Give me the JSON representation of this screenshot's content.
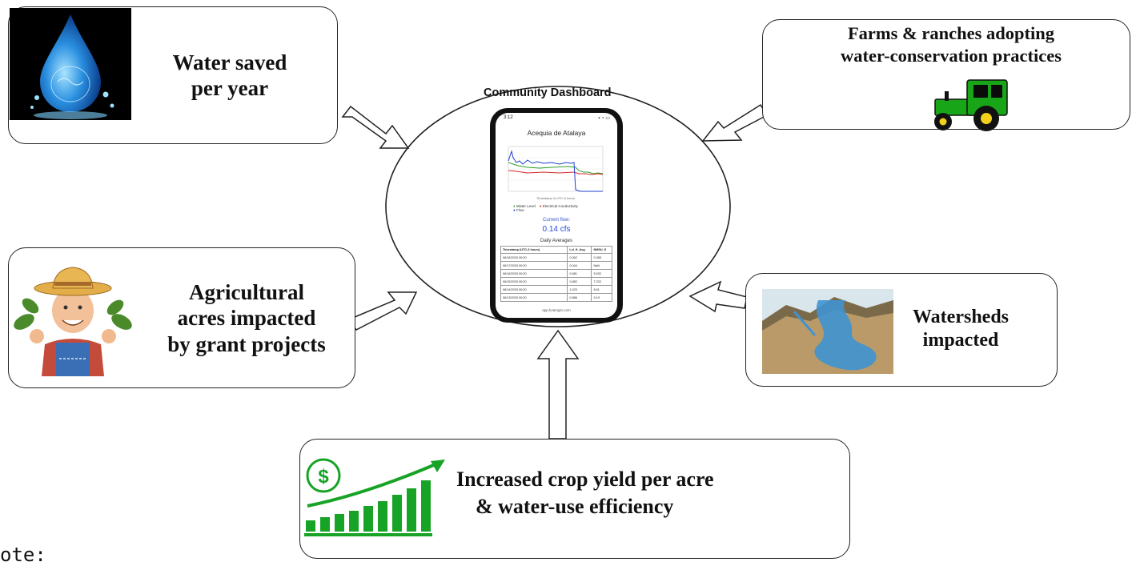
{
  "center": {
    "title": "Community Dashboard",
    "phone": {
      "time": "3:12",
      "status_icons": "signal-wifi-battery",
      "app_title": "Acequia de Atalaya",
      "x_axis_label": "Timestamp in UTC-6 hours",
      "legend": [
        "Water Level",
        "Electrical Conductivity",
        "Flow"
      ],
      "current_flow_label": "Current flow:",
      "current_flow_value": "0.14 cfs",
      "daily_averages_label": "Daily Averages",
      "table": {
        "headers": [
          "Timestamp (UTC-6 hours)",
          "Lvl_ft_Avg",
          "NMSU_fl"
        ],
        "rows": [
          [
            "06/18/2020 00:00",
            "0.062",
            "0.083"
          ],
          [
            "06/17/2020 00:00",
            "0.044",
            "NaN"
          ],
          [
            "06/16/2020 00:00",
            "0.681",
            "5.532"
          ],
          [
            "06/15/2020 00:00",
            "0.882",
            "7.222"
          ],
          [
            "06/14/2020 00:00",
            "1.023",
            "8.61"
          ],
          [
            "06/13/2020 00:00",
            "0.886",
            "9.19"
          ]
        ]
      },
      "url": "app.kotengin.com"
    }
  },
  "boxes": {
    "water_saved": [
      "Water saved",
      "per year"
    ],
    "farms": [
      "Farms & ranches adopting",
      "water-conservation practices"
    ],
    "acres": [
      "Agricultural",
      "acres impacted",
      "by grant projects"
    ],
    "watersheds": [
      "Watersheds",
      "impacted"
    ],
    "crop_yield": [
      "Increased crop yield per acre",
      "& water-use efficiency"
    ]
  },
  "footer_cutoff": "ote:",
  "colors": {
    "series_water_level": "#2ca02c",
    "series_ec": "#d62728",
    "series_flow": "#1f3fd6",
    "accent_green": "#17a325",
    "tractor_green": "#18a518"
  }
}
